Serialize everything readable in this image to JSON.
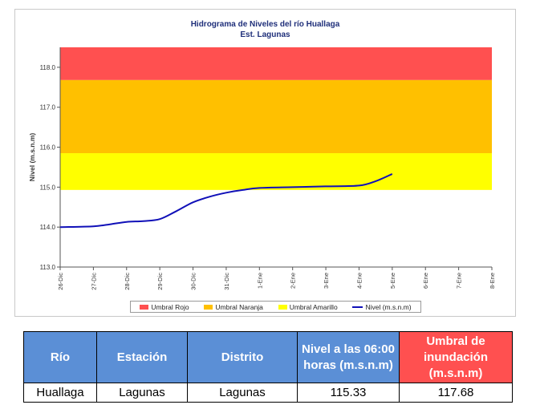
{
  "chart_data": {
    "type": "line",
    "title": "Hidrograma de Niveles del río Huallaga",
    "subtitle": "Est. Lagunas",
    "ylabel": "Nivel (m.s.n.m)",
    "xlabel": "",
    "ylim": [
      113.0,
      118.5
    ],
    "yticks": [
      "113.0",
      "114.0",
      "115.0",
      "116.0",
      "117.0",
      "118.0"
    ],
    "categories": [
      "26-Dic",
      "27-Dic",
      "28-Dic",
      "29-Dic",
      "30-Dic",
      "31-Dic",
      "1-Ene",
      "2-Ene",
      "3-Ene",
      "4-Ene",
      "5-Ene",
      "6-Ene",
      "7-Ene",
      "8-Ene"
    ],
    "bands": [
      {
        "name": "Umbral Rojo",
        "from": 117.68,
        "to": 118.5,
        "color": "#ff5050"
      },
      {
        "name": "Umbral Naranja",
        "from": 115.85,
        "to": 117.68,
        "color": "#ffc000"
      },
      {
        "name": "Umbral Amarillo",
        "from": 114.93,
        "to": 115.85,
        "color": "#ffff00"
      }
    ],
    "series": [
      {
        "name": "Nivel (m.s.n.m)",
        "color": "#1010b8",
        "x": [
          0,
          1,
          1.5,
          2,
          2.5,
          3,
          3.5,
          4,
          4.5,
          5,
          5.5,
          6,
          7,
          8,
          9,
          9.5,
          10
        ],
        "values": [
          114.0,
          114.02,
          114.07,
          114.13,
          114.15,
          114.2,
          114.4,
          114.62,
          114.76,
          114.86,
          114.93,
          114.98,
          115.0,
          115.02,
          115.04,
          115.15,
          115.33
        ]
      }
    ],
    "legend_position": "bottom"
  },
  "table": {
    "headers": [
      "Río",
      "Estación",
      "Distrito",
      "Nivel a las 06:00 horas (m.s.n.m)",
      "Umbral de inundación (m.s.n.m)"
    ],
    "row": [
      "Huallaga",
      "Lagunas",
      "Lagunas",
      "115.33",
      "117.68"
    ]
  }
}
